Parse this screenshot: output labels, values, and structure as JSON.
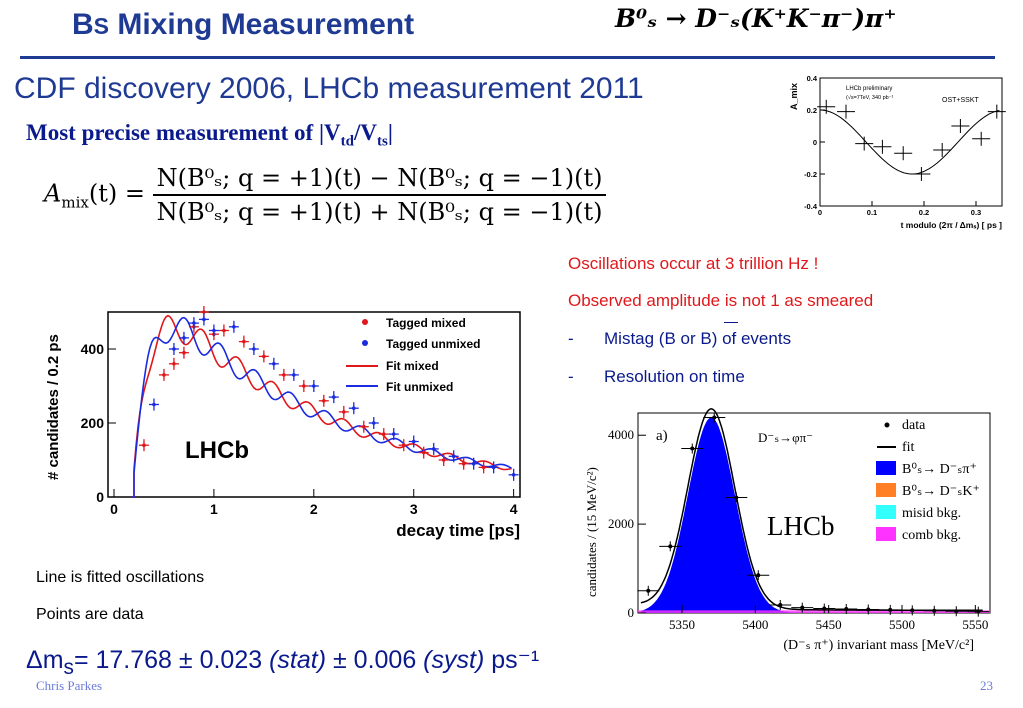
{
  "slide": {
    "title_main": "B",
    "title_sub": "S",
    "title_rest": "Mixing Measurement",
    "decay": "B⁰ₛ → D⁻ₛ(K⁺K⁻π⁻)π⁺",
    "subtitle": "CDF discovery 2006, LHCb measurement 2011",
    "precise_prefix": "Most precise measurement of |V",
    "precise_sub1": "td",
    "precise_mid": "/V",
    "precise_sub2": "ts",
    "precise_suffix": "|",
    "formula_lhs": "A",
    "formula_lhs_sub": "mix",
    "formula_lhs_arg": "(t) =",
    "formula_num": "N(B⁰ₛ; q = +1)(t) − N(B⁰ₛ; q = −1)(t)",
    "formula_den": "N(B⁰ₛ; q = +1)(t) + N(B⁰ₛ; q = −1)(t)",
    "notes": [
      "Oscillations occur at  3 trillion Hz !",
      "Observed amplitude is not 1 as smeared"
    ],
    "bullets": [
      "Mistag (B or B) of events",
      "Resolution on time"
    ],
    "bullet_dash": "-",
    "left_notes": [
      "Line is fitted oscillations",
      "Points are data"
    ],
    "dm_prefix": "Δm",
    "dm_sub": "s",
    "dm_value": "= 17.768 ± 0.023 ",
    "dm_stat": "(stat)",
    "dm_mid": " ± 0.006 ",
    "dm_syst": "(syst)",
    "dm_unit": " ps⁻¹",
    "footer_left": "Chris Parkes",
    "footer_right": "23"
  },
  "colors": {
    "title": "#1f3a93",
    "red": "#e0181b",
    "mixed": "#e0181b",
    "unmixed": "#1a2be0",
    "signal": "#0000ff",
    "orange": "#ff7f27",
    "cyan": "#33ffff",
    "magenta": "#ff33ff"
  },
  "chart_data": [
    {
      "type": "line",
      "title": "",
      "xlabel": "decay time [ps]",
      "ylabel": "# candidates / 0.2 ps",
      "xlim": [
        0,
        4
      ],
      "ylim": [
        0,
        500
      ],
      "xticks": [
        "0",
        "1",
        "2",
        "3",
        "4"
      ],
      "yticks": [
        "0",
        "200",
        "400"
      ],
      "watermark": "LHCb",
      "legend": [
        "Tagged mixed",
        "Tagged unmixed",
        "Fit mixed",
        "Fit unmixed"
      ],
      "series": [
        {
          "name": "Tagged mixed",
          "x": [
            0.3,
            0.5,
            0.6,
            0.7,
            0.8,
            0.9,
            1.0,
            1.1,
            1.3,
            1.5,
            1.7,
            1.9,
            2.1,
            2.3,
            2.5,
            2.7,
            2.9,
            3.1,
            3.3,
            3.5,
            3.7
          ],
          "values": [
            140,
            330,
            360,
            390,
            460,
            500,
            440,
            450,
            420,
            380,
            330,
            300,
            260,
            230,
            190,
            170,
            140,
            120,
            100,
            90,
            80
          ]
        },
        {
          "name": "Tagged unmixed",
          "x": [
            0.4,
            0.6,
            0.7,
            0.8,
            0.9,
            1.0,
            1.2,
            1.4,
            1.6,
            1.8,
            2.0,
            2.2,
            2.4,
            2.6,
            2.8,
            3.0,
            3.2,
            3.4,
            3.6,
            3.8,
            4.0
          ],
          "values": [
            250,
            400,
            430,
            470,
            480,
            450,
            460,
            400,
            360,
            330,
            300,
            270,
            240,
            200,
            170,
            150,
            130,
            110,
            90,
            80,
            60
          ]
        }
      ]
    },
    {
      "type": "scatter",
      "title": "LHCb preliminary",
      "annotation": "(√s=7TeV, 340 pb⁻¹",
      "tag": "OST+SSKT",
      "xlabel": "t modulo (2π / Δmₛ) [ ps ]",
      "ylabel": "A_mix",
      "xlim": [
        0,
        0.35
      ],
      "ylim": [
        -0.4,
        0.4
      ],
      "xticks": [
        "0",
        "0.1",
        "0.2",
        "0.3"
      ],
      "yticks": [
        "-0.4",
        "-0.2",
        "0",
        "0.2",
        "0.4"
      ],
      "x": [
        0.012,
        0.05,
        0.085,
        0.12,
        0.16,
        0.195,
        0.235,
        0.27,
        0.31,
        0.34
      ],
      "values": [
        0.22,
        0.19,
        -0.01,
        -0.03,
        -0.07,
        -0.2,
        -0.05,
        0.1,
        0.02,
        0.19
      ]
    },
    {
      "type": "histogram",
      "panel": "a)",
      "decay_label": "D⁻ₛ→φπ⁻",
      "watermark": "LHCb",
      "xlabel": "(D⁻ₛ π⁺) invariant mass [MeV/c²]",
      "ylabel": "candidates / (15 MeV/c²)",
      "xlim": [
        5320,
        5560
      ],
      "ylim": [
        0,
        4500
      ],
      "xticks": [
        "5350",
        "5400",
        "5450",
        "5500",
        "5550"
      ],
      "yticks": [
        "0",
        "2000",
        "4000"
      ],
      "legend": [
        "data",
        "fit",
        "B⁰ₛ→ D⁻ₛπ⁺",
        "B⁰ₛ→ D⁻ₛK⁺",
        "misid bkg.",
        "comb bkg."
      ],
      "x": [
        5327,
        5342,
        5357,
        5372,
        5387,
        5402,
        5417,
        5432,
        5447,
        5462,
        5477,
        5492,
        5507,
        5522,
        5537,
        5552
      ],
      "values": [
        500,
        1500,
        3700,
        4400,
        2600,
        850,
        180,
        120,
        100,
        90,
        80,
        70,
        60,
        50,
        40,
        30
      ]
    }
  ]
}
